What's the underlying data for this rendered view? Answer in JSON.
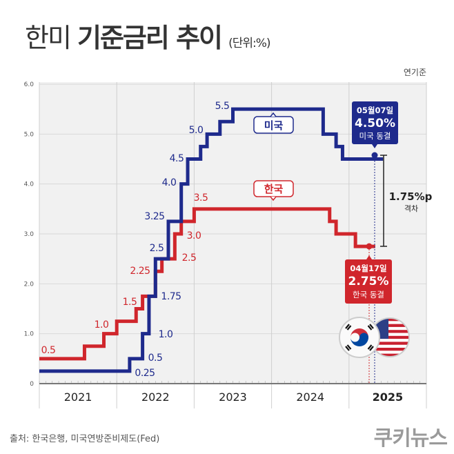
{
  "title": {
    "light": "한미",
    "bold": "기준금리 추이",
    "unit": "(단위:%)"
  },
  "basis": "연기준",
  "source": "출처: 한국은행, 미국연방준비제도(Fed)",
  "logo": "쿠키뉴스",
  "colors": {
    "us": "#1e2a8c",
    "korea": "#d0262c",
    "plot_bg": "#f1f1f1",
    "grid": "#d8d8d8"
  },
  "chart_data": {
    "type": "line",
    "step": true,
    "title": "한미 기준금리 추이",
    "ylabel": "",
    "xlabel": "",
    "ylim": [
      0,
      6
    ],
    "yticks": [
      "0",
      "1.0",
      "2.0",
      "3.0",
      "4.0",
      "5.0",
      "6.0"
    ],
    "xticks": [
      "2021",
      "2022",
      "2023",
      "2024",
      "2025"
    ],
    "grid": true,
    "series": [
      {
        "name": "미국",
        "color": "#1e2a8c",
        "points": [
          [
            "2021-01",
            0.25
          ],
          [
            "2022-03",
            0.5
          ],
          [
            "2022-05",
            1.0
          ],
          [
            "2022-06",
            1.75
          ],
          [
            "2022-07",
            2.5
          ],
          [
            "2022-09",
            3.25
          ],
          [
            "2022-11",
            4.0
          ],
          [
            "2022-12",
            4.5
          ],
          [
            "2023-02",
            4.75
          ],
          [
            "2023-03",
            5.0
          ],
          [
            "2023-05",
            5.25
          ],
          [
            "2023-07",
            5.5
          ],
          [
            "2024-09",
            5.0
          ],
          [
            "2024-11",
            4.75
          ],
          [
            "2024-12",
            4.5
          ],
          [
            "2025-05",
            4.5
          ]
        ],
        "labels": [
          "0.25",
          "0.5",
          "1.0",
          "1.75",
          "2.5",
          "3.25",
          "4.0",
          "4.5",
          "5.0",
          "5.5"
        ]
      },
      {
        "name": "한국",
        "color": "#d0262c",
        "points": [
          [
            "2021-01",
            0.5
          ],
          [
            "2021-08",
            0.75
          ],
          [
            "2021-11",
            1.0
          ],
          [
            "2022-01",
            1.25
          ],
          [
            "2022-04",
            1.5
          ],
          [
            "2022-05",
            1.75
          ],
          [
            "2022-07",
            2.25
          ],
          [
            "2022-08",
            2.5
          ],
          [
            "2022-10",
            3.0
          ],
          [
            "2022-11",
            3.25
          ],
          [
            "2023-01",
            3.5
          ],
          [
            "2024-10",
            3.25
          ],
          [
            "2024-11",
            3.0
          ],
          [
            "2025-02",
            2.75
          ],
          [
            "2025-04",
            2.75
          ]
        ],
        "labels": [
          "0.5",
          "1.0",
          "1.5",
          "2.25",
          "2.5",
          "3.0",
          "3.5"
        ]
      }
    ],
    "annotations": {
      "us": {
        "date": "05월07일",
        "rate": "4.50%",
        "note": "미국 동결"
      },
      "korea": {
        "date": "04월17일",
        "rate": "2.75%",
        "note": "한국 동결"
      },
      "gap": {
        "value": "1.75%p",
        "label": "격차"
      }
    }
  }
}
